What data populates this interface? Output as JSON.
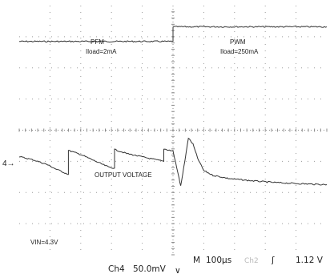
{
  "chart_data": {
    "type": "line",
    "title": "",
    "xlim": [
      0,
      10
    ],
    "ylim": [
      -4,
      4
    ],
    "grid": true,
    "annotations": {
      "pfm_mode": "PFM",
      "pfm_load": "Iload=2mA",
      "pwm_mode": "PWM",
      "pwm_load": "Iload=250mA",
      "output_label": "OUTPUT VOLTAGE",
      "vin_label": "VIN=4.3V",
      "channel_marker": "4→"
    },
    "series": [
      {
        "color": "#333333",
        "x": [
          0,
          5.0,
          5.0,
          10
        ],
        "y": [
          2.85,
          2.85,
          3.32,
          3.32
        ]
      },
      {
        "color": "#333333",
        "x": [
          0,
          0.45,
          0.9,
          1.2,
          1.6,
          1.6,
          2.0,
          2.6,
          2.9,
          3.1,
          3.1,
          3.5,
          4.2,
          4.7,
          4.7,
          5.0,
          5.2,
          5.25,
          5.35,
          5.5,
          5.65,
          5.8,
          6.0,
          6.3,
          6.8,
          7.5,
          8.3,
          9.2,
          10
        ],
        "y": [
          -0.85,
          -0.95,
          -1.1,
          -1.25,
          -1.42,
          -0.65,
          -0.78,
          -1.05,
          -1.18,
          -1.22,
          -0.62,
          -0.75,
          -0.9,
          -1.0,
          -0.6,
          -0.67,
          -1.55,
          -1.8,
          -1.2,
          -0.25,
          -0.45,
          -0.9,
          -1.3,
          -1.45,
          -1.55,
          -1.62,
          -1.68,
          -1.72,
          -1.75
        ]
      }
    ],
    "footer": {
      "channel": "Ch4",
      "scale": "50.0mV",
      "bw_symbol": "∨",
      "timebase_prefix": "M",
      "timebase": "100µs",
      "trigger_channel": "Ch2",
      "trigger_slope": "ʃ",
      "trigger_level": "1.12 V"
    }
  }
}
